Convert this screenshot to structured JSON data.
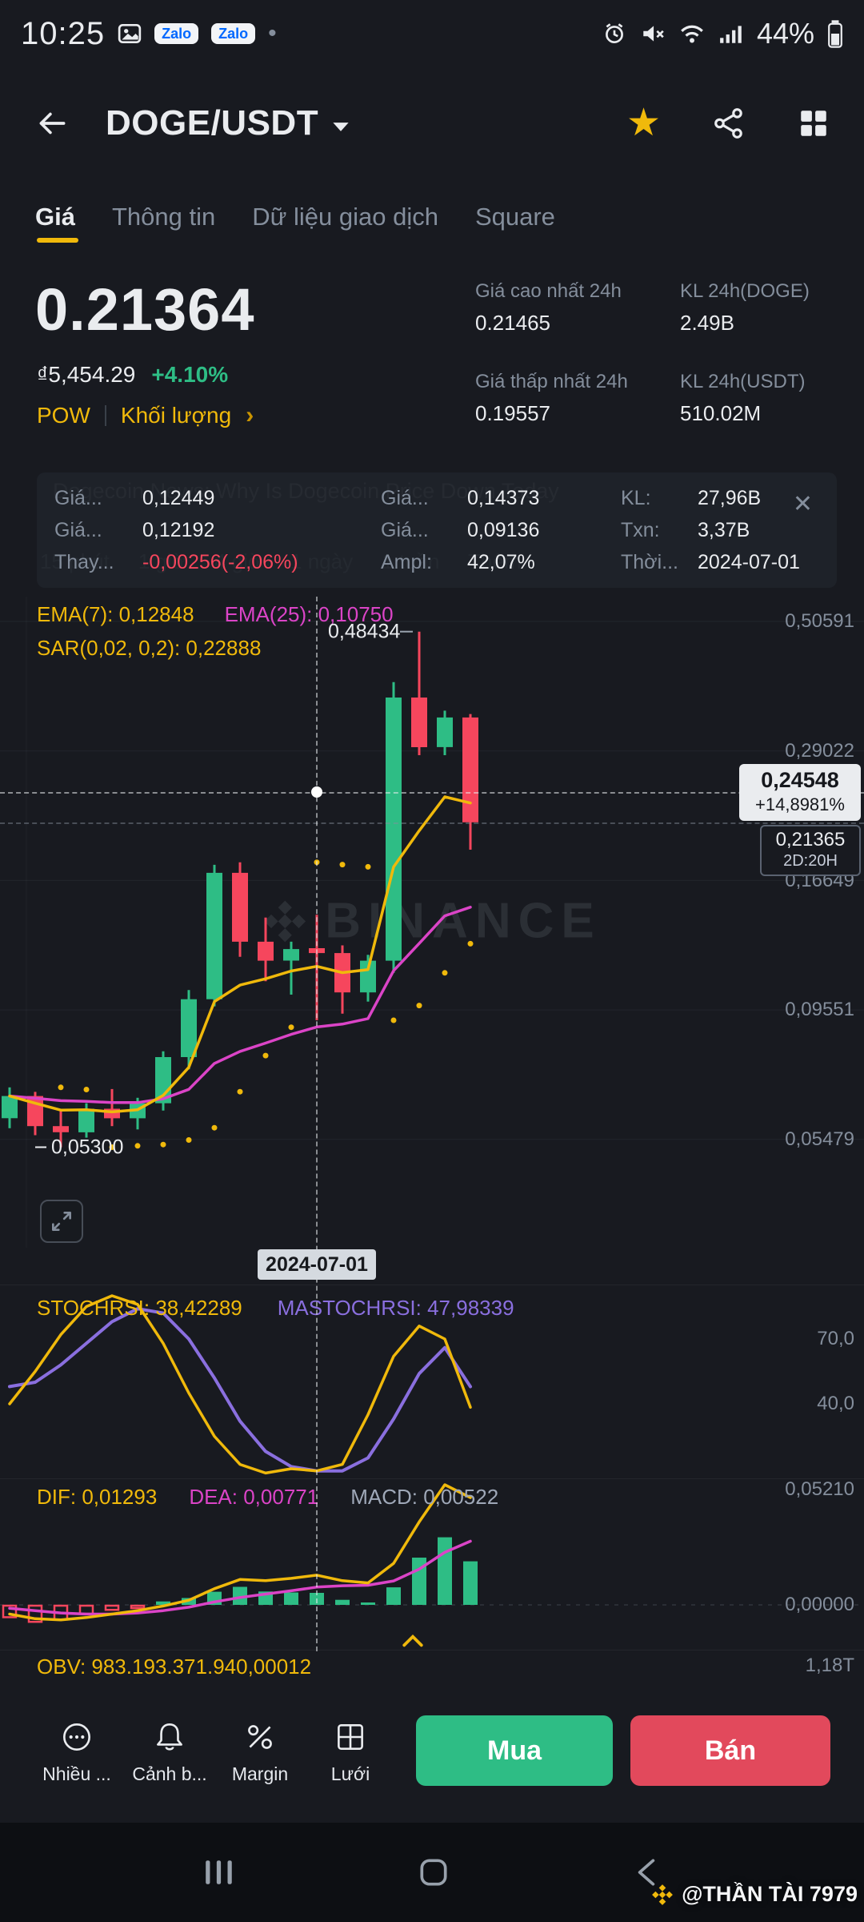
{
  "status_bar": {
    "time": "10:25",
    "battery_pct": "44%",
    "zalo_badge": "Zalo"
  },
  "icons": {
    "star": "★",
    "close": "✕",
    "chevron_right": "›",
    "dot_separator": "•"
  },
  "header": {
    "title": "DOGE/USDT"
  },
  "tabs": [
    {
      "label": "Giá",
      "active": true
    },
    {
      "label": "Thông tin",
      "active": false
    },
    {
      "label": "Dữ liệu giao dịch",
      "active": false
    },
    {
      "label": "Square",
      "active": false
    }
  ],
  "price": {
    "last": "0.21364",
    "fiat": "₫5,454.29",
    "change_pct": "+4.10%",
    "consensus_tag": "POW",
    "volume_link": "Khối lượng"
  },
  "stats": {
    "high_label": "Giá cao nhất 24h",
    "high_value": "0.21465",
    "low_label": "Giá thấp nhất 24h",
    "low_value": "0.19557",
    "vol_base_label": "KL 24h(DOGE)",
    "vol_base_value": "2.49B",
    "vol_quote_label": "KL 24h(USDT)",
    "vol_quote_value": "510.02M"
  },
  "background_dim": {
    "news_headline": "Dogecoin News: Why Is Dogecoin Price Down Today",
    "timeframe_row": "15 phút     1 giờ     4 giờ     1 ngày     1 tuần     Thêm"
  },
  "ohlc_panel": {
    "open_label": "Giá...",
    "open": "0,12449",
    "close_label": "Giá...",
    "close": "0,12192",
    "change_label": "Thay...",
    "change": "-0,00256(-2,06%)",
    "high_label": "Giá...",
    "high": "0,14373",
    "low_label": "Giá...",
    "low": "0,09136",
    "ampl_label": "Ampl:",
    "ampl": "42,07%",
    "vol_label": "KL:",
    "vol": "27,96B",
    "txn_label": "Txn:",
    "txn": "3,37B",
    "time_label": "Thời...",
    "time": "2024-07-01"
  },
  "chart_labels": {
    "ema7": "EMA(7): 0,12848",
    "ema25": "EMA(25): 0,10750",
    "sar": "SAR(0,02, 0,2): 0,22888",
    "axis": [
      "0,50591",
      "0,29022",
      "0,16649",
      "0,09551",
      "0,05479"
    ],
    "high_marker": "0,48434",
    "low_marker": "0,05300",
    "crosshair_price": "0,24548",
    "crosshair_change": "+14,8981%",
    "last_price": "0,21365",
    "countdown": "2D:20H",
    "date_label": "2024-07-01",
    "stoch_k": "STOCHRSI: 38,42289",
    "stoch_d": "MASTOCHRSI: 47,98339",
    "stoch_axis": [
      "70,0",
      "40,0"
    ],
    "dif": "DIF: 0,01293",
    "dea": "DEA: 0,00771",
    "macd": "MACD: 0,00522",
    "macd_axis": [
      "0,05210",
      "0,00000"
    ],
    "obv": "OBV: 983.193.371.940,00012",
    "obv_axis": "1,18T",
    "watermark": "BINANCE"
  },
  "chart_data": {
    "type": "candlestick",
    "candles": [
      [
        0.06,
        0.0685,
        0.0575,
        0.066
      ],
      [
        0.066,
        0.0672,
        0.0558,
        0.058
      ],
      [
        0.058,
        0.062,
        0.053,
        0.0565
      ],
      [
        0.0565,
        0.064,
        0.0552,
        0.0625
      ],
      [
        0.0625,
        0.068,
        0.058,
        0.06
      ],
      [
        0.06,
        0.0655,
        0.0572,
        0.064
      ],
      [
        0.064,
        0.08,
        0.062,
        0.078
      ],
      [
        0.078,
        0.104,
        0.074,
        0.1
      ],
      [
        0.1,
        0.178,
        0.097,
        0.172
      ],
      [
        0.172,
        0.18,
        0.12,
        0.128
      ],
      [
        0.128,
        0.142,
        0.108,
        0.118
      ],
      [
        0.118,
        0.128,
        0.102,
        0.124
      ],
      [
        0.12449,
        0.14373,
        0.09136,
        0.12192
      ],
      [
        0.12192,
        0.126,
        0.094,
        0.103
      ],
      [
        0.103,
        0.121,
        0.099,
        0.118
      ],
      [
        0.118,
        0.39,
        0.112,
        0.365
      ],
      [
        0.365,
        0.48434,
        0.285,
        0.295
      ],
      [
        0.295,
        0.345,
        0.285,
        0.335
      ],
      [
        0.335,
        0.34,
        0.19,
        0.21365
      ]
    ],
    "price_axis": [
      0.50591,
      0.29022,
      0.16649,
      0.09551,
      0.05479
    ],
    "crosshair_index": 12,
    "crosshair_price": 0.24548,
    "last_price": 0.21365,
    "high_marker": 0.48434,
    "low_marker": 0.053,
    "ema_periods": [
      7,
      25
    ],
    "sar": {
      "step": 0.02,
      "max": 0.2
    },
    "stochrsi": {
      "k": [
        40,
        55,
        72,
        85,
        90,
        86,
        68,
        45,
        25,
        12,
        8,
        10,
        9,
        12,
        35,
        62,
        76,
        70,
        38.42
      ],
      "d": [
        48,
        50,
        58,
        68,
        78,
        84,
        82,
        70,
        52,
        32,
        18,
        11,
        9,
        9,
        15,
        33,
        54,
        66,
        47.98
      ],
      "k_value": 38.42289,
      "d_value": 47.98339,
      "grid": [
        70.0,
        40.0
      ]
    },
    "macd": {
      "dif": [
        -0.004,
        -0.006,
        -0.0065,
        -0.0055,
        -0.004,
        -0.0025,
        -0.0005,
        0.002,
        0.007,
        0.011,
        0.0105,
        0.0115,
        0.0129,
        0.0105,
        0.0095,
        0.018,
        0.036,
        0.0521,
        0.0465
      ],
      "dea": [
        -0.0015,
        -0.0025,
        -0.0035,
        -0.004,
        -0.004,
        -0.0035,
        -0.0025,
        -0.001,
        0.0013,
        0.0032,
        0.0047,
        0.0061,
        0.0077,
        0.0083,
        0.0085,
        0.0104,
        0.0155,
        0.0228,
        0.0276
      ],
      "hist": [
        -0.005,
        -0.007,
        -0.006,
        -0.0035,
        -0.0018,
        -0.001,
        0.0015,
        0.003,
        0.0057,
        0.0078,
        0.0058,
        0.0054,
        0.0052,
        0.0022,
        0.001,
        0.0076,
        0.0205,
        0.0293,
        0.0189
      ],
      "dif_value": 0.01293,
      "dea_value": 0.00771,
      "macd_value": 0.00522,
      "axis_max": 0.0521,
      "axis_min": 0.0
    },
    "obv": {
      "value": "983.193.371.940,00012",
      "axis": "1,18T"
    }
  },
  "toolbar": {
    "items": [
      {
        "label": "Nhiều ..."
      },
      {
        "label": "Cảnh b..."
      },
      {
        "label": "Margin"
      },
      {
        "label": "Lưới"
      }
    ],
    "buy": "Mua",
    "sell": "Bán"
  },
  "credit": "@THẦN TÀI 7979",
  "colors": {
    "up": "#2EBD85",
    "down": "#F6465D",
    "accent": "#F0B90B",
    "ema25": "#DB44C7",
    "stoch_d": "#8A6FDF"
  }
}
